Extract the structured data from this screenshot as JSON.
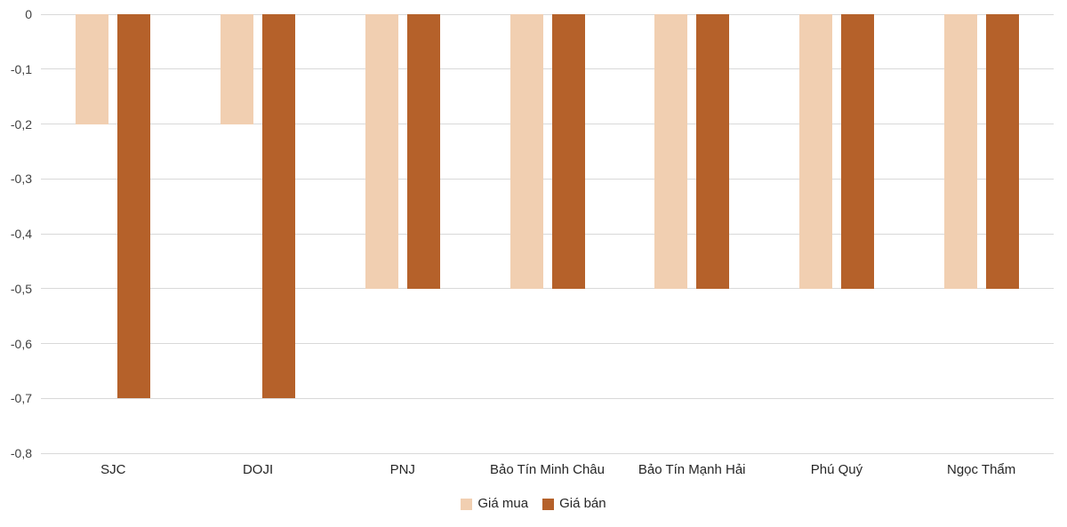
{
  "chart_data": {
    "type": "bar",
    "title": "",
    "xlabel": "",
    "ylabel": "",
    "categories": [
      "SJC",
      "DOJI",
      "PNJ",
      "Bảo Tín Minh Châu",
      "Bảo Tín Mạnh Hải",
      "Phú Quý",
      "Ngọc Thẩm"
    ],
    "series": [
      {
        "name": "Giá mua",
        "color": "#f1cfb1",
        "values": [
          -0.2,
          -0.2,
          -0.5,
          -0.5,
          -0.5,
          -0.5,
          -0.5
        ]
      },
      {
        "name": "Giá bán",
        "color": "#b5612a",
        "values": [
          -0.7,
          -0.7,
          -0.5,
          -0.5,
          -0.5,
          -0.5,
          -0.5
        ]
      }
    ],
    "ylim": [
      -0.8,
      0
    ],
    "y_ticks": [
      0,
      -0.1,
      -0.2,
      -0.3,
      -0.4,
      -0.5,
      -0.6,
      -0.7,
      -0.8
    ],
    "y_tick_labels": [
      "0",
      "-0,1",
      "-0,2",
      "-0,3",
      "-0,4",
      "-0,5",
      "-0,6",
      "-0,7",
      "-0,8"
    ],
    "grid": true,
    "legend_position": "bottom",
    "colors": {
      "gridline": "#d9d9d9",
      "axis_text": "#404040",
      "label_text": "#262626",
      "background": "#ffffff"
    }
  }
}
